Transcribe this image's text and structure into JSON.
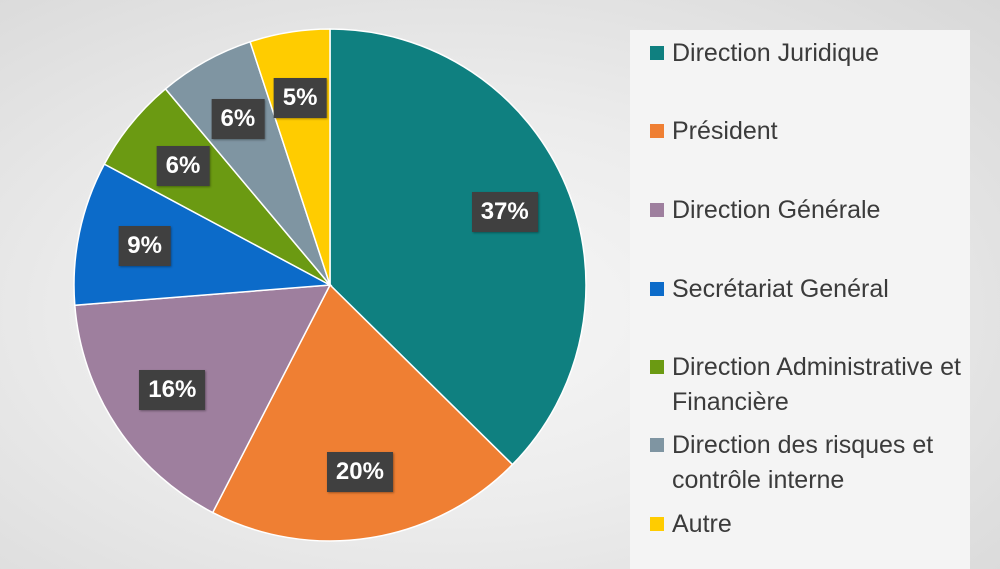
{
  "chart_data": {
    "type": "pie",
    "slices": [
      {
        "label": "Direction Juridique",
        "value": 37,
        "display": "37%",
        "color": "#0f8080"
      },
      {
        "label": "Président",
        "value": 20,
        "display": "20%",
        "color": "#ef7f33"
      },
      {
        "label": "Direction Générale",
        "value": 16,
        "display": "16%",
        "color": "#9e7f9e"
      },
      {
        "label": "Secrétariat Genéral",
        "value": 9,
        "display": "9%",
        "color": "#0c6bc9"
      },
      {
        "label": "Direction Administrative et Financière",
        "value": 6,
        "display": "6%",
        "color": "#6b9a12"
      },
      {
        "label": "Direction des risques et contrôle interne",
        "value": 6,
        "display": "6%",
        "color": "#7f95a2"
      },
      {
        "label": "Autre",
        "value": 5,
        "display": "5%",
        "color": "#ffcc00"
      }
    ],
    "start_angle": "12 o'clock",
    "direction": "clockwise",
    "legend_position": "right"
  }
}
